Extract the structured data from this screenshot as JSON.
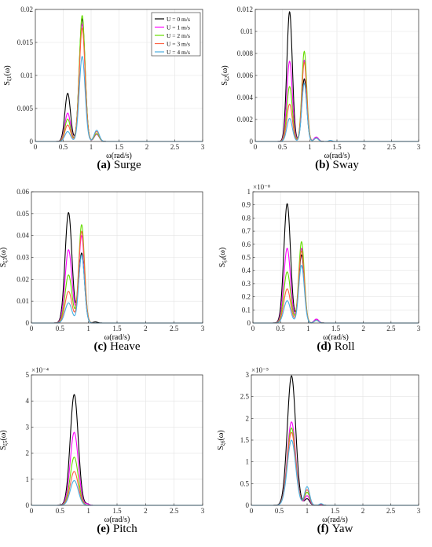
{
  "series_colors": [
    "#000000",
    "#ff00ff",
    "#66dd00",
    "#ff6040",
    "#4aaee0"
  ],
  "legend": {
    "entries": [
      "U = 0 m/s",
      "U = 1 m/s",
      "U = 2 m/s",
      "U = 3 m/s",
      "U = 4 m/s"
    ],
    "placement": "top-right of panel (a)"
  },
  "chart_data": [
    {
      "type": "line",
      "caption_letter": "(a)",
      "caption_text": "Surge",
      "ylabel_main": "S",
      "ylabel_sub": "ξ1",
      "ylabel_tail": "(ω)",
      "xlabel": "ω(rad/s)",
      "xlim": [
        0,
        3
      ],
      "ylim": [
        0,
        0.02
      ],
      "xticks": [
        "0",
        "0.5",
        "1",
        "1.5",
        "2",
        "2.5",
        "3"
      ],
      "yticks": [
        "0",
        "0.005",
        "0.01",
        "0.015",
        "0.02"
      ],
      "exponent": "",
      "grid": true,
      "series": [
        {
          "name": "U = 0 m/s",
          "peaks": [
            {
              "x": 0.58,
              "y": 0.0073,
              "w": 0.05
            },
            {
              "x": 0.84,
              "y": 0.0186,
              "w": 0.052
            },
            {
              "x": 1.1,
              "y": 0.0011,
              "w": 0.045
            }
          ]
        },
        {
          "name": "U = 1 m/s",
          "peaks": [
            {
              "x": 0.58,
              "y": 0.0043,
              "w": 0.05
            },
            {
              "x": 0.84,
              "y": 0.0178,
              "w": 0.052
            },
            {
              "x": 1.1,
              "y": 0.0011,
              "w": 0.045
            }
          ]
        },
        {
          "name": "U = 2 m/s",
          "peaks": [
            {
              "x": 0.58,
              "y": 0.0034,
              "w": 0.05
            },
            {
              "x": 0.84,
              "y": 0.0191,
              "w": 0.052
            },
            {
              "x": 1.1,
              "y": 0.0012,
              "w": 0.045
            }
          ]
        },
        {
          "name": "U = 3 m/s",
          "peaks": [
            {
              "x": 0.58,
              "y": 0.0025,
              "w": 0.05
            },
            {
              "x": 0.84,
              "y": 0.0172,
              "w": 0.052
            },
            {
              "x": 1.1,
              "y": 0.0015,
              "w": 0.045
            }
          ]
        },
        {
          "name": "U = 4 m/s",
          "peaks": [
            {
              "x": 0.58,
              "y": 0.0015,
              "w": 0.05
            },
            {
              "x": 0.84,
              "y": 0.0129,
              "w": 0.052
            },
            {
              "x": 1.1,
              "y": 0.0017,
              "w": 0.045
            }
          ]
        }
      ]
    },
    {
      "type": "line",
      "caption_letter": "(b)",
      "caption_text": "Sway",
      "ylabel_main": "S",
      "ylabel_sub": "ξ2",
      "ylabel_tail": "(ω)",
      "xlabel": "ω(rad/s)",
      "xlim": [
        0,
        3
      ],
      "ylim": [
        0,
        0.012
      ],
      "xticks": [
        "0",
        "0.5",
        "1",
        "1.5",
        "2",
        "2.5",
        "3"
      ],
      "yticks": [
        "0",
        "0.002",
        "0.004",
        "0.006",
        "0.008",
        "0.01",
        "0.012"
      ],
      "exponent": "",
      "grid": true,
      "series": [
        {
          "name": "U = 0 m/s",
          "peaks": [
            {
              "x": 0.63,
              "y": 0.0118,
              "w": 0.05
            },
            {
              "x": 0.9,
              "y": 0.0057,
              "w": 0.045
            },
            {
              "x": 1.12,
              "y": 0.0004,
              "w": 0.04
            }
          ]
        },
        {
          "name": "U = 1 m/s",
          "peaks": [
            {
              "x": 0.63,
              "y": 0.0073,
              "w": 0.05
            },
            {
              "x": 0.9,
              "y": 0.0074,
              "w": 0.045
            },
            {
              "x": 1.12,
              "y": 0.0004,
              "w": 0.04
            }
          ]
        },
        {
          "name": "U = 2 m/s",
          "peaks": [
            {
              "x": 0.63,
              "y": 0.005,
              "w": 0.05
            },
            {
              "x": 0.9,
              "y": 0.0082,
              "w": 0.045
            },
            {
              "x": 1.12,
              "y": 0.0003,
              "w": 0.04
            }
          ]
        },
        {
          "name": "U = 3 m/s",
          "peaks": [
            {
              "x": 0.63,
              "y": 0.0034,
              "w": 0.05
            },
            {
              "x": 0.9,
              "y": 0.0072,
              "w": 0.045
            },
            {
              "x": 1.12,
              "y": 0.0003,
              "w": 0.04
            }
          ]
        },
        {
          "name": "U = 4 m/s",
          "peaks": [
            {
              "x": 0.63,
              "y": 0.0021,
              "w": 0.05
            },
            {
              "x": 0.9,
              "y": 0.0053,
              "w": 0.045
            },
            {
              "x": 1.12,
              "y": 0.0003,
              "w": 0.04
            },
            {
              "x": 1.38,
              "y": 0.0001,
              "w": 0.03
            }
          ]
        }
      ]
    },
    {
      "type": "line",
      "caption_letter": "(c)",
      "caption_text": "Heave",
      "ylabel_main": "S",
      "ylabel_sub": "ξ3",
      "ylabel_tail": "(ω)",
      "xlabel": "ω(rad/s)",
      "xlim": [
        0,
        3
      ],
      "ylim": [
        0,
        0.06
      ],
      "xticks": [
        "0",
        "0.5",
        "1",
        "1.5",
        "2",
        "2.5",
        "3"
      ],
      "yticks": [
        "0",
        "0.01",
        "0.02",
        "0.03",
        "0.04",
        "0.05",
        "0.06"
      ],
      "exponent": "",
      "grid": true,
      "series": [
        {
          "name": "U = 0 m/s",
          "peaks": [
            {
              "x": 0.65,
              "y": 0.0505,
              "w": 0.06
            },
            {
              "x": 0.88,
              "y": 0.032,
              "w": 0.05
            },
            {
              "x": 1.12,
              "y": 0.0005,
              "w": 0.04
            }
          ]
        },
        {
          "name": "U = 1 m/s",
          "peaks": [
            {
              "x": 0.65,
              "y": 0.0335,
              "w": 0.06
            },
            {
              "x": 0.88,
              "y": 0.04,
              "w": 0.05
            }
          ]
        },
        {
          "name": "U = 2 m/s",
          "peaks": [
            {
              "x": 0.65,
              "y": 0.022,
              "w": 0.06
            },
            {
              "x": 0.88,
              "y": 0.045,
              "w": 0.05
            }
          ]
        },
        {
          "name": "U = 3 m/s",
          "peaks": [
            {
              "x": 0.65,
              "y": 0.0145,
              "w": 0.06
            },
            {
              "x": 0.88,
              "y": 0.042,
              "w": 0.05
            }
          ]
        },
        {
          "name": "U = 4 m/s",
          "peaks": [
            {
              "x": 0.65,
              "y": 0.0092,
              "w": 0.06
            },
            {
              "x": 0.88,
              "y": 0.031,
              "w": 0.05
            }
          ]
        }
      ]
    },
    {
      "type": "line",
      "caption_letter": "(d)",
      "caption_text": "Roll",
      "ylabel_main": "S",
      "ylabel_sub": "ξ4",
      "ylabel_tail": "(ω)",
      "xlabel": "ω(rad/s)",
      "xlim": [
        0,
        3
      ],
      "ylim": [
        0,
        1e-08
      ],
      "xticks": [
        "0",
        "0.5",
        "1",
        "1.5",
        "2",
        "2.5",
        "3"
      ],
      "yticks": [
        "0",
        "0.1",
        "0.2",
        "0.3",
        "0.4",
        "0.5",
        "0.6",
        "0.7",
        "0.8",
        "0.9",
        "1"
      ],
      "exponent": "×10⁻⁸",
      "grid": true,
      "series": [
        {
          "name": "U = 0 m/s",
          "peaks": [
            {
              "x": 0.62,
              "y": 9.1e-09,
              "w": 0.06
            },
            {
              "x": 0.88,
              "y": 5.2e-09,
              "w": 0.05
            },
            {
              "x": 1.15,
              "y": 3e-10,
              "w": 0.04
            }
          ]
        },
        {
          "name": "U = 1 m/s",
          "peaks": [
            {
              "x": 0.62,
              "y": 5.7e-09,
              "w": 0.06
            },
            {
              "x": 0.88,
              "y": 5.7e-09,
              "w": 0.05
            },
            {
              "x": 1.15,
              "y": 3e-10,
              "w": 0.04
            }
          ]
        },
        {
          "name": "U = 2 m/s",
          "peaks": [
            {
              "x": 0.62,
              "y": 3.9e-09,
              "w": 0.06
            },
            {
              "x": 0.88,
              "y": 6.2e-09,
              "w": 0.05
            },
            {
              "x": 1.15,
              "y": 2e-10,
              "w": 0.04
            }
          ]
        },
        {
          "name": "U = 3 m/s",
          "peaks": [
            {
              "x": 0.62,
              "y": 2.6e-09,
              "w": 0.06
            },
            {
              "x": 0.88,
              "y": 5.5e-09,
              "w": 0.05
            },
            {
              "x": 1.15,
              "y": 2e-10,
              "w": 0.04
            }
          ]
        },
        {
          "name": "U = 4 m/s",
          "peaks": [
            {
              "x": 0.62,
              "y": 1.7e-09,
              "w": 0.06
            },
            {
              "x": 0.88,
              "y": 4.4e-09,
              "w": 0.05
            },
            {
              "x": 1.15,
              "y": 2e-10,
              "w": 0.04
            }
          ]
        }
      ]
    },
    {
      "type": "line",
      "caption_letter": "(e)",
      "caption_text": "Pitch",
      "ylabel_main": "S",
      "ylabel_sub": "ξ5",
      "ylabel_tail": "(ω)",
      "xlabel": "ω(rad/s)",
      "xlim": [
        0,
        3
      ],
      "ylim": [
        0,
        0.0005
      ],
      "xticks": [
        "0",
        "0.5",
        "1",
        "1.5",
        "2",
        "2.5",
        "3"
      ],
      "yticks": [
        "0",
        "1",
        "2",
        "3",
        "4",
        "5"
      ],
      "exponent": "×10⁻⁴",
      "grid": true,
      "series": [
        {
          "name": "U = 0 m/s",
          "peaks": [
            {
              "x": 0.75,
              "y": 0.000425,
              "w": 0.07
            },
            {
              "x": 0.98,
              "y": 5e-06,
              "w": 0.03
            }
          ]
        },
        {
          "name": "U = 1 m/s",
          "peaks": [
            {
              "x": 0.75,
              "y": 0.00028,
              "w": 0.07
            },
            {
              "x": 0.98,
              "y": 5e-06,
              "w": 0.03
            }
          ]
        },
        {
          "name": "U = 2 m/s",
          "peaks": [
            {
              "x": 0.75,
              "y": 0.000185,
              "w": 0.07
            }
          ]
        },
        {
          "name": "U = 3 m/s",
          "peaks": [
            {
              "x": 0.75,
              "y": 0.00013,
              "w": 0.07
            }
          ]
        },
        {
          "name": "U = 4 m/s",
          "peaks": [
            {
              "x": 0.75,
              "y": 9.5e-05,
              "w": 0.07
            }
          ]
        }
      ]
    },
    {
      "type": "line",
      "caption_letter": "(f)",
      "caption_text": "Yaw",
      "ylabel_main": "S",
      "ylabel_sub": "ξ6",
      "ylabel_tail": "(ω)",
      "xlabel": "ω(rad/s)",
      "xlim": [
        0,
        3
      ],
      "ylim": [
        0,
        3e-05
      ],
      "xticks": [
        "0",
        "0.5",
        "1",
        "1.5",
        "2",
        "2.5",
        "3"
      ],
      "yticks": [
        "0",
        "0.5",
        "1",
        "1.5",
        "2",
        "2.5",
        "3"
      ],
      "exponent": "×10⁻⁵",
      "grid": true,
      "series": [
        {
          "name": "U = 0 m/s",
          "peaks": [
            {
              "x": 0.72,
              "y": 2.98e-05,
              "w": 0.075
            },
            {
              "x": 1.0,
              "y": 1.5e-06,
              "w": 0.045
            },
            {
              "x": 1.25,
              "y": 1e-07,
              "w": 0.03
            }
          ]
        },
        {
          "name": "U = 1 m/s",
          "peaks": [
            {
              "x": 0.72,
              "y": 1.92e-05,
              "w": 0.075
            },
            {
              "x": 1.0,
              "y": 2.2e-06,
              "w": 0.045
            },
            {
              "x": 1.25,
              "y": 2e-07,
              "w": 0.03
            }
          ]
        },
        {
          "name": "U = 2 m/s",
          "peaks": [
            {
              "x": 0.72,
              "y": 1.78e-05,
              "w": 0.075
            },
            {
              "x": 1.0,
              "y": 3e-06,
              "w": 0.045
            },
            {
              "x": 1.25,
              "y": 3e-07,
              "w": 0.03
            }
          ]
        },
        {
          "name": "U = 3 m/s",
          "peaks": [
            {
              "x": 0.72,
              "y": 1.68e-05,
              "w": 0.075
            },
            {
              "x": 1.0,
              "y": 3.6e-06,
              "w": 0.045
            },
            {
              "x": 1.25,
              "y": 3e-07,
              "w": 0.03
            }
          ]
        },
        {
          "name": "U = 4 m/s",
          "peaks": [
            {
              "x": 0.72,
              "y": 1.5e-05,
              "w": 0.075
            },
            {
              "x": 1.0,
              "y": 4.3e-06,
              "w": 0.045
            },
            {
              "x": 1.25,
              "y": 4e-07,
              "w": 0.03
            }
          ]
        }
      ]
    }
  ]
}
